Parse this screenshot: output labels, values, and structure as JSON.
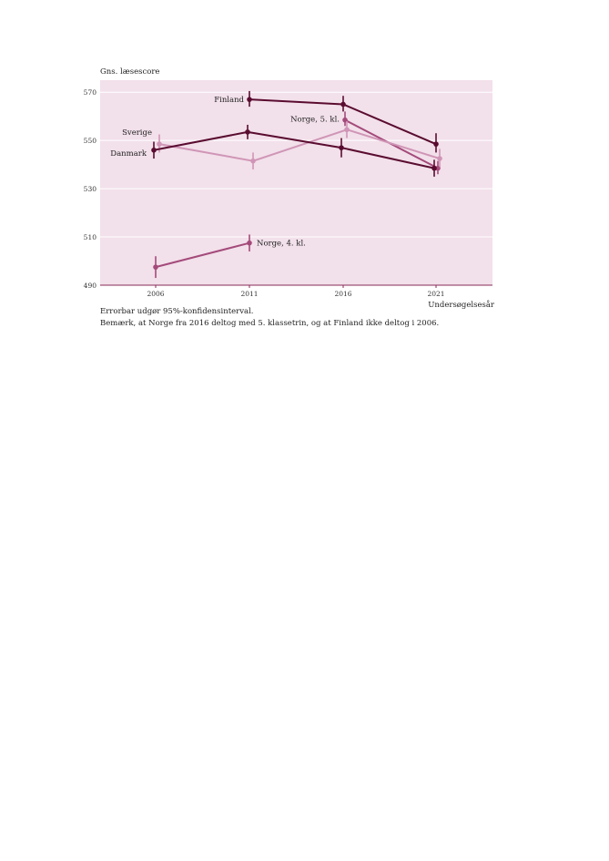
{
  "chart_data": {
    "type": "line",
    "ylabel": "Gns. læsescore",
    "xlabel": "Undersøgelsesår",
    "ylim": [
      490,
      575
    ],
    "yticks": [
      490,
      510,
      530,
      550,
      570
    ],
    "x": [
      "2006",
      "2011",
      "2016",
      "2021"
    ],
    "grid": "horizontal",
    "background": "#f2e0ea",
    "series": [
      {
        "name": "Finland",
        "color": "#5a0c30",
        "x": [
          "2011",
          "2016",
          "2021"
        ],
        "values": [
          567,
          565,
          548.5
        ],
        "err_low": [
          564,
          562,
          545
        ],
        "err_high": [
          570.5,
          568.5,
          553
        ]
      },
      {
        "name": "Norge, 5. kl.",
        "color": "#a44a7a",
        "x": [
          "2016",
          "2021"
        ],
        "values": [
          558.5,
          538.5
        ],
        "err_low": [
          556,
          536
        ],
        "err_high": [
          562,
          541.5
        ]
      },
      {
        "name": "Sverige",
        "color": "#d095b6",
        "x": [
          "2006",
          "2011",
          "2016",
          "2021"
        ],
        "values": [
          548.5,
          541.5,
          554.5,
          542.5
        ],
        "err_low": [
          545,
          538,
          551,
          539
        ],
        "err_high": [
          552.5,
          545,
          558,
          546.5
        ]
      },
      {
        "name": "Danmark",
        "color": "#5a0c30",
        "x": [
          "2006",
          "2011",
          "2016",
          "2021"
        ],
        "values": [
          546,
          553.5,
          547,
          538.5
        ],
        "err_low": [
          542.5,
          550.5,
          543,
          535
        ],
        "err_high": [
          549.5,
          556.5,
          551,
          542
        ]
      },
      {
        "name": "Norge, 4. kl.",
        "color": "#a44a7a",
        "x": [
          "2006",
          "2011"
        ],
        "values": [
          497.5,
          507.5
        ],
        "err_low": [
          493,
          504
        ],
        "err_high": [
          502,
          511
        ]
      }
    ]
  },
  "notes": [
    "Errorbar udgør 95%-konfidensinterval.",
    "Bemærk, at Norge fra 2016 deltog med 5. klassetrin, og at Finland ikke deltog i 2006."
  ]
}
